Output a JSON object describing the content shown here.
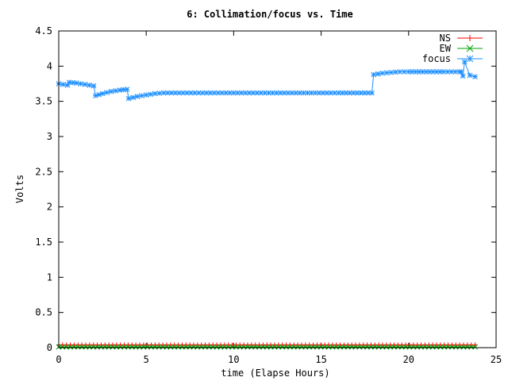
{
  "chart_data": {
    "type": "line",
    "title": "6: Collimation/focus vs. Time",
    "xlabel": "time (Elapse Hours)",
    "ylabel": "Volts",
    "xlim": [
      0,
      25
    ],
    "ylim": [
      0,
      4.5
    ],
    "xticks": [
      0,
      5,
      10,
      15,
      20,
      25
    ],
    "xtick_labels": [
      "0",
      "5",
      "10",
      "15",
      "20",
      "25"
    ],
    "yticks": [
      0,
      0.5,
      1,
      1.5,
      2,
      2.5,
      3,
      3.5,
      4,
      4.5
    ],
    "ytick_labels": [
      "0",
      "0.5",
      "1",
      "1.5",
      "2",
      "2.5",
      "3",
      "3.5",
      "4",
      "4.5"
    ],
    "grid": false,
    "legend_position": "top-right",
    "series": [
      {
        "name": "NS",
        "color": "#ff0000",
        "marker": "plus",
        "x": [
          0,
          23.8
        ],
        "y": [
          0.04,
          0.04
        ]
      },
      {
        "name": "EW",
        "color": "#00a000",
        "marker": "cross",
        "x": [
          0,
          23.8
        ],
        "y": [
          0.01,
          0.01
        ]
      },
      {
        "name": "focus",
        "color": "#1e90ff",
        "marker": "star",
        "x": [
          0,
          0.5,
          0.6,
          1.0,
          1.5,
          2.0,
          2.1,
          2.5,
          3.0,
          3.5,
          3.9,
          4.0,
          4.5,
          5.0,
          5.5,
          6.0,
          8,
          10,
          12,
          14,
          16,
          17.9,
          18.0,
          18.5,
          19.0,
          19.5,
          20.0,
          21,
          22,
          22.9,
          23.0,
          23.1,
          23.2,
          23.5,
          23.8
        ],
        "y": [
          3.75,
          3.73,
          3.77,
          3.76,
          3.74,
          3.72,
          3.58,
          3.61,
          3.64,
          3.66,
          3.67,
          3.54,
          3.57,
          3.59,
          3.61,
          3.62,
          3.62,
          3.62,
          3.62,
          3.62,
          3.62,
          3.62,
          3.88,
          3.9,
          3.91,
          3.92,
          3.92,
          3.92,
          3.92,
          3.92,
          3.92,
          3.86,
          4.06,
          3.87,
          3.85
        ]
      }
    ]
  }
}
